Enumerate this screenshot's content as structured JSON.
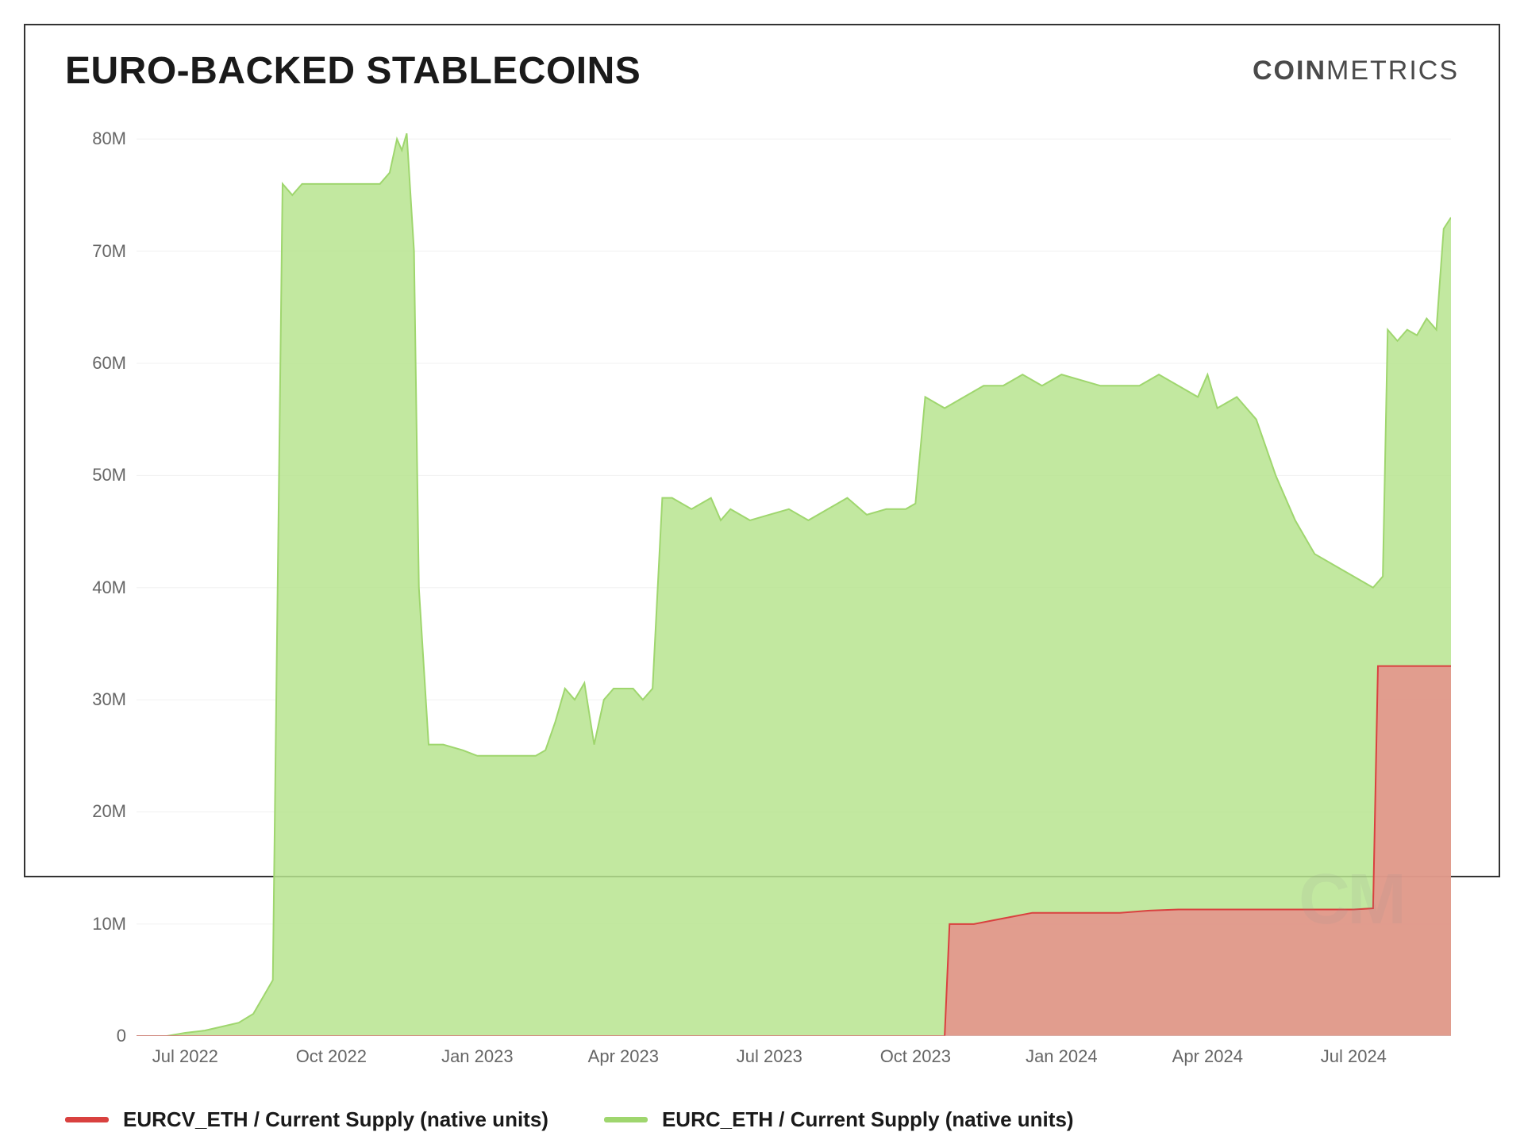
{
  "title": "EURO-BACKED STABLECOINS",
  "brand_bold": "COIN",
  "brand_light": "METRICS",
  "watermark": "CM",
  "chart": {
    "type": "area",
    "background_color": "#ffffff",
    "grid_color": "#f0f0f0",
    "axis_color": "#cccccc",
    "text_color": "#666666",
    "title_fontsize": 48,
    "tick_fontsize": 22,
    "legend_fontsize": 26,
    "x_range": [
      0,
      27
    ],
    "x_ticks": [
      {
        "pos": 1,
        "label": "Jul 2022"
      },
      {
        "pos": 4,
        "label": "Oct 2022"
      },
      {
        "pos": 7,
        "label": "Jan 2023"
      },
      {
        "pos": 10,
        "label": "Apr 2023"
      },
      {
        "pos": 13,
        "label": "Jul 2023"
      },
      {
        "pos": 16,
        "label": "Oct 2023"
      },
      {
        "pos": 19,
        "label": "Jan 2024"
      },
      {
        "pos": 22,
        "label": "Apr 2024"
      },
      {
        "pos": 25,
        "label": "Jul 2024"
      }
    ],
    "y_range": [
      0,
      82
    ],
    "y_ticks": [
      {
        "v": 0,
        "label": "0"
      },
      {
        "v": 10,
        "label": "10M"
      },
      {
        "v": 20,
        "label": "20M"
      },
      {
        "v": 30,
        "label": "30M"
      },
      {
        "v": 40,
        "label": "40M"
      },
      {
        "v": 50,
        "label": "50M"
      },
      {
        "v": 60,
        "label": "60M"
      },
      {
        "v": 70,
        "label": "70M"
      },
      {
        "v": 80,
        "label": "80M"
      }
    ],
    "series": [
      {
        "id": "EURC_ETH",
        "label": "EURC_ETH / Current Supply (native units)",
        "stroke": "#9fd66e",
        "fill": "#b7e48f",
        "fill_opacity": 0.85,
        "line_width": 2,
        "points": [
          [
            0,
            0
          ],
          [
            0.6,
            0
          ],
          [
            1.0,
            0.3
          ],
          [
            1.4,
            0.5
          ],
          [
            1.8,
            0.9
          ],
          [
            2.1,
            1.2
          ],
          [
            2.4,
            2.0
          ],
          [
            2.6,
            3.5
          ],
          [
            2.8,
            5.0
          ],
          [
            3.0,
            76
          ],
          [
            3.2,
            75
          ],
          [
            3.4,
            76
          ],
          [
            3.8,
            76
          ],
          [
            4.2,
            76
          ],
          [
            4.6,
            76
          ],
          [
            5.0,
            76
          ],
          [
            5.2,
            77
          ],
          [
            5.35,
            80
          ],
          [
            5.45,
            79
          ],
          [
            5.55,
            80.5
          ],
          [
            5.7,
            70
          ],
          [
            5.8,
            40
          ],
          [
            6.0,
            26
          ],
          [
            6.3,
            26
          ],
          [
            6.7,
            25.5
          ],
          [
            7.0,
            25
          ],
          [
            7.4,
            25
          ],
          [
            7.8,
            25
          ],
          [
            8.2,
            25
          ],
          [
            8.4,
            25.5
          ],
          [
            8.6,
            28
          ],
          [
            8.8,
            31
          ],
          [
            9.0,
            30
          ],
          [
            9.2,
            31.5
          ],
          [
            9.4,
            26
          ],
          [
            9.6,
            30
          ],
          [
            9.8,
            31
          ],
          [
            10.0,
            31
          ],
          [
            10.2,
            31
          ],
          [
            10.4,
            30
          ],
          [
            10.6,
            31
          ],
          [
            10.8,
            48
          ],
          [
            11.0,
            48
          ],
          [
            11.4,
            47
          ],
          [
            11.8,
            48
          ],
          [
            12.0,
            46
          ],
          [
            12.2,
            47
          ],
          [
            12.6,
            46
          ],
          [
            13.0,
            46.5
          ],
          [
            13.4,
            47
          ],
          [
            13.8,
            46
          ],
          [
            14.2,
            47
          ],
          [
            14.6,
            48
          ],
          [
            15.0,
            46.5
          ],
          [
            15.4,
            47
          ],
          [
            15.8,
            47
          ],
          [
            16.0,
            47.5
          ],
          [
            16.2,
            57
          ],
          [
            16.6,
            56
          ],
          [
            17.0,
            57
          ],
          [
            17.4,
            58
          ],
          [
            17.8,
            58
          ],
          [
            18.2,
            59
          ],
          [
            18.6,
            58
          ],
          [
            19.0,
            59
          ],
          [
            19.4,
            58.5
          ],
          [
            19.8,
            58
          ],
          [
            20.2,
            58
          ],
          [
            20.6,
            58
          ],
          [
            21.0,
            59
          ],
          [
            21.4,
            58
          ],
          [
            21.8,
            57
          ],
          [
            22.0,
            59
          ],
          [
            22.2,
            56
          ],
          [
            22.6,
            57
          ],
          [
            23.0,
            55
          ],
          [
            23.4,
            50
          ],
          [
            23.8,
            46
          ],
          [
            24.2,
            43
          ],
          [
            24.6,
            42
          ],
          [
            25.0,
            41
          ],
          [
            25.4,
            40
          ],
          [
            25.6,
            41
          ],
          [
            25.7,
            63
          ],
          [
            25.9,
            62
          ],
          [
            26.1,
            63
          ],
          [
            26.3,
            62.5
          ],
          [
            26.5,
            64
          ],
          [
            26.7,
            63
          ],
          [
            26.85,
            72
          ],
          [
            27.0,
            73
          ]
        ]
      },
      {
        "id": "EURCV_ETH",
        "label": "EURCV_ETH / Current Supply (native units)",
        "stroke": "#d9413f",
        "fill": "#e98a89",
        "fill_opacity": 0.8,
        "line_width": 2,
        "points": [
          [
            0,
            0
          ],
          [
            16.6,
            0
          ],
          [
            16.7,
            10
          ],
          [
            17.2,
            10
          ],
          [
            17.8,
            10.5
          ],
          [
            18.4,
            11
          ],
          [
            19.0,
            11
          ],
          [
            19.6,
            11
          ],
          [
            20.2,
            11
          ],
          [
            20.8,
            11.2
          ],
          [
            21.4,
            11.3
          ],
          [
            22.0,
            11.3
          ],
          [
            22.6,
            11.3
          ],
          [
            23.2,
            11.3
          ],
          [
            23.8,
            11.3
          ],
          [
            24.4,
            11.3
          ],
          [
            25.0,
            11.3
          ],
          [
            25.4,
            11.4
          ],
          [
            25.5,
            33
          ],
          [
            25.8,
            33
          ],
          [
            26.2,
            33
          ],
          [
            26.6,
            33
          ],
          [
            27.0,
            33
          ]
        ]
      }
    ]
  },
  "legend_order": [
    "EURCV_ETH",
    "EURC_ETH"
  ]
}
